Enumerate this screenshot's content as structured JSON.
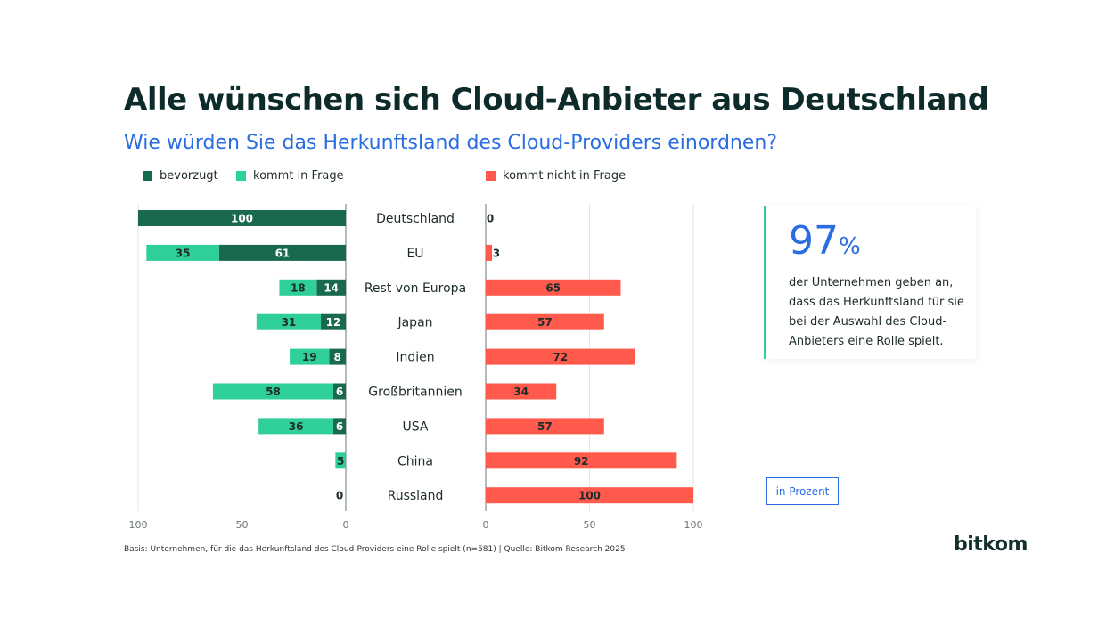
{
  "title": "Alle wünschen sich Cloud-Anbieter aus Deutschland",
  "subtitle": "Wie würden Sie das Herkunftsland des Cloud-Providers einordnen?",
  "legend": {
    "preferred": "bevorzugt",
    "possible": "kommt in Frage",
    "not_possible": "kommt nicht in Frage"
  },
  "colors": {
    "preferred": "#18694f",
    "possible": "#2ecf98",
    "not_possible": "#ff5a4c",
    "accent": "#2a6de0"
  },
  "callout": {
    "value": "97",
    "unit": "%",
    "text": "der Unternehmen geben an, dass das Herkunftsland für sie bei der Auswahl des Cloud-Anbieters eine Rolle spielt."
  },
  "unit_note": "in Prozent",
  "footnote": "Basis: Unternehmen, für die das Herkunftsland des Cloud-Providers eine Rolle spielt (n=581) | Quelle: Bitkom Research 2025",
  "logo": "bitkom",
  "chart_data": {
    "type": "bar",
    "categories": [
      "Deutschland",
      "EU",
      "Rest von Europa",
      "Japan",
      "Indien",
      "Großbritannien",
      "USA",
      "China",
      "Russland"
    ],
    "series": [
      {
        "name": "bevorzugt",
        "values": [
          100,
          61,
          14,
          12,
          8,
          6,
          6,
          0,
          0
        ]
      },
      {
        "name": "kommt in Frage",
        "values": [
          0,
          35,
          18,
          31,
          19,
          58,
          36,
          5,
          0
        ]
      },
      {
        "name": "kommt nicht in Frage",
        "values": [
          0,
          3,
          65,
          57,
          72,
          34,
          57,
          92,
          100
        ]
      }
    ],
    "left_ticks": [
      "100",
      "50",
      "0"
    ],
    "right_ticks": [
      "0",
      "50",
      "100"
    ],
    "xlim": [
      0,
      100
    ],
    "grid": true,
    "legend_position": "top-left"
  }
}
